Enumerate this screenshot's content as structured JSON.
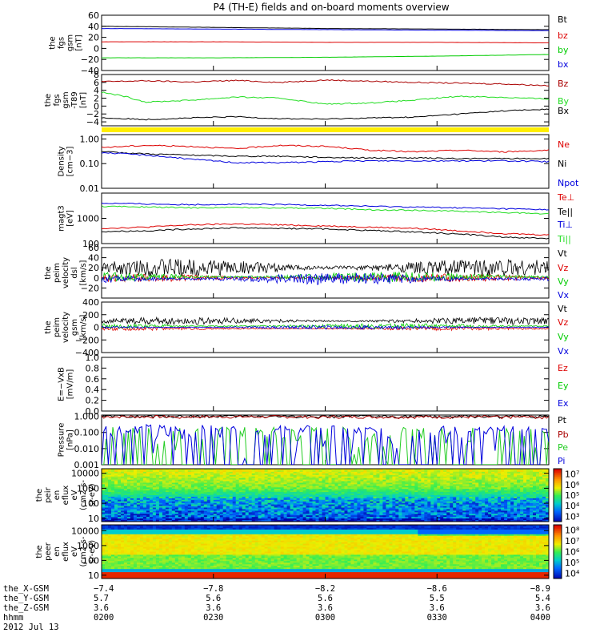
{
  "title": "P4 (TH-E) fields and on-board moments overview",
  "chart_data": [
    {
      "id": "fgs",
      "type": "line",
      "ylabel": [
        "the",
        "fgs",
        "gsm",
        "[nT]"
      ],
      "ylim": [
        -40,
        60
      ],
      "yticks": [
        "60",
        "40",
        "20",
        "0",
        "−20",
        "−40"
      ],
      "ytick_values": [
        60,
        40,
        20,
        0,
        -20,
        -40
      ],
      "series": [
        {
          "name": "Bt",
          "color": "#000000",
          "x": [
            0,
            0.25,
            0.5,
            0.75,
            1
          ],
          "y": [
            40,
            38,
            36,
            35,
            34
          ]
        },
        {
          "name": "bz",
          "color": "#dd0000",
          "x": [
            0,
            0.25,
            0.5,
            0.75,
            1
          ],
          "y": [
            12,
            12,
            11,
            11,
            10
          ]
        },
        {
          "name": "by",
          "color": "#00cc00",
          "x": [
            0,
            0.25,
            0.5,
            0.75,
            1
          ],
          "y": [
            -17,
            -17,
            -16,
            -14,
            -11
          ]
        },
        {
          "name": "bx",
          "color": "#0000dd",
          "x": [
            0,
            0.25,
            0.5,
            0.75,
            1
          ],
          "y": [
            36,
            35,
            34,
            33,
            32
          ]
        }
      ]
    },
    {
      "id": "fgs-dsl",
      "type": "line",
      "ylabel": [
        "the",
        "fgs",
        "gsm",
        "-T89",
        "[nT]"
      ],
      "ylim": [
        -5,
        8
      ],
      "yticks": [
        "8",
        "6",
        "4",
        "2",
        "0",
        "−2",
        "−4"
      ],
      "ytick_values": [
        8,
        6,
        4,
        2,
        0,
        -2,
        -4
      ],
      "series": [
        {
          "name": "Bz",
          "color": "#aa0000",
          "x": [
            0,
            0.1,
            0.2,
            0.3,
            0.4,
            0.5,
            0.6,
            0.7,
            0.8,
            0.9,
            1
          ],
          "y": [
            6.2,
            6.4,
            6.1,
            6.5,
            6.0,
            6.6,
            6.3,
            6.0,
            5.8,
            5.6,
            5.2
          ]
        },
        {
          "name": "By",
          "color": "#22dd22",
          "x": [
            0,
            0.05,
            0.1,
            0.2,
            0.3,
            0.4,
            0.5,
            0.6,
            0.7,
            0.8,
            0.9,
            1
          ],
          "y": [
            3.5,
            2.5,
            1.0,
            1.5,
            2.3,
            2.0,
            0.5,
            0.8,
            1.5,
            2.5,
            2.2,
            1.8
          ]
        },
        {
          "name": "Bx",
          "color": "#000000",
          "x": [
            0,
            0.1,
            0.2,
            0.3,
            0.4,
            0.5,
            0.6,
            0.7,
            0.8,
            0.9,
            1
          ],
          "y": [
            -3.0,
            -3.4,
            -3.0,
            -2.7,
            -3.2,
            -3.3,
            -3.0,
            -2.8,
            -2.0,
            -1.2,
            -0.8
          ]
        }
      ]
    },
    {
      "id": "density",
      "type": "line",
      "scale": "log",
      "ylabel": [
        "Density",
        "[cm−3]"
      ],
      "ylim": [
        0.01,
        1.5
      ],
      "yticks": [
        "1.00",
        "0.10",
        "0.01"
      ],
      "ytick_values": [
        1,
        0.1,
        0.01
      ],
      "series": [
        {
          "name": "Ne",
          "color": "#dd0000",
          "x": [
            0,
            0.1,
            0.2,
            0.3,
            0.4,
            0.5,
            0.6,
            0.7,
            0.8,
            0.9,
            1
          ],
          "y": [
            0.45,
            0.55,
            0.5,
            0.4,
            0.55,
            0.5,
            0.35,
            0.3,
            0.35,
            0.3,
            0.35
          ]
        },
        {
          "name": "Ni",
          "color": "#000000",
          "x": [
            0,
            0.1,
            0.2,
            0.3,
            0.4,
            0.5,
            0.6,
            0.7,
            0.8,
            0.9,
            1
          ],
          "y": [
            0.3,
            0.25,
            0.22,
            0.2,
            0.2,
            0.18,
            0.17,
            0.17,
            0.16,
            0.16,
            0.16
          ]
        },
        {
          "name": "Npot",
          "color": "#0000dd",
          "x": [
            0,
            0.1,
            0.2,
            0.3,
            0.4,
            0.5,
            0.6,
            0.7,
            0.8,
            0.9,
            1
          ],
          "y": [
            0.28,
            0.22,
            0.15,
            0.11,
            0.11,
            0.12,
            0.13,
            0.13,
            0.13,
            0.13,
            0.12
          ]
        }
      ]
    },
    {
      "id": "temperature",
      "type": "line",
      "scale": "log",
      "ylabel": [
        "magt3",
        "[eV]"
      ],
      "ylim": [
        100,
        10000
      ],
      "yticks": [
        "1000",
        "100"
      ],
      "ytick_values": [
        1000,
        100
      ],
      "series": [
        {
          "name": "Te⊥",
          "color": "#dd0000",
          "x": [
            0,
            0.1,
            0.2,
            0.3,
            0.4,
            0.5,
            0.6,
            0.7,
            0.8,
            0.9,
            1
          ],
          "y": [
            400,
            450,
            550,
            600,
            550,
            500,
            450,
            400,
            320,
            250,
            220
          ]
        },
        {
          "name": "Te||",
          "color": "#000000",
          "x": [
            0,
            0.1,
            0.2,
            0.3,
            0.4,
            0.5,
            0.6,
            0.7,
            0.8,
            0.9,
            1
          ],
          "y": [
            300,
            320,
            380,
            420,
            400,
            380,
            330,
            290,
            240,
            180,
            160
          ]
        },
        {
          "name": "Ti⊥",
          "color": "#0000dd",
          "x": [
            0,
            0.1,
            0.2,
            0.3,
            0.4,
            0.5,
            0.6,
            0.7,
            0.8,
            0.9,
            1
          ],
          "y": [
            4000,
            3700,
            3500,
            3600,
            3500,
            3300,
            3000,
            2800,
            2600,
            2400,
            2200
          ]
        },
        {
          "name": "Ti||",
          "color": "#22dd22",
          "x": [
            0,
            0.1,
            0.2,
            0.3,
            0.4,
            0.5,
            0.6,
            0.7,
            0.8,
            0.9,
            1
          ],
          "y": [
            3000,
            2800,
            2600,
            2700,
            2600,
            2500,
            2200,
            2100,
            1900,
            1700,
            1500
          ]
        }
      ]
    },
    {
      "id": "velocity-peim-dsl",
      "type": "line",
      "ylabel": [
        "the",
        "peim",
        "velocity",
        "dsl",
        "[km/s]"
      ],
      "ylim": [
        -40,
        60
      ],
      "yticks": [
        "60",
        "40",
        "20",
        "0",
        "−20"
      ],
      "ytick_values": [
        60,
        40,
        20,
        0,
        -20
      ],
      "series": [
        {
          "name": "Vt",
          "color": "#000000",
          "baseline": 20,
          "amp": 18
        },
        {
          "name": "Vz",
          "color": "#dd0000",
          "baseline": 0,
          "amp": 8
        },
        {
          "name": "Vy",
          "color": "#00cc00",
          "baseline": 2,
          "amp": 10
        },
        {
          "name": "Vx",
          "color": "#0000dd",
          "baseline": -2,
          "amp": 12
        }
      ]
    },
    {
      "id": "velocity-peim-gsm",
      "type": "line",
      "ylabel": [
        "the",
        "peim",
        "velocity",
        "gsm",
        "[km/s]"
      ],
      "ylim": [
        -400,
        400
      ],
      "yticks": [
        "400",
        "200",
        "0",
        "−200",
        "−400"
      ],
      "ytick_values": [
        400,
        200,
        0,
        -200,
        -400
      ],
      "series": [
        {
          "name": "Vt",
          "color": "#000000",
          "baseline": 100,
          "amp": 60
        },
        {
          "name": "Vz",
          "color": "#dd0000",
          "baseline": -20,
          "amp": 30
        },
        {
          "name": "Vy",
          "color": "#00cc00",
          "baseline": 20,
          "amp": 40
        },
        {
          "name": "Vx",
          "color": "#0000dd",
          "baseline": 0,
          "amp": 30
        }
      ]
    },
    {
      "id": "efield",
      "type": "line",
      "ylabel": [
        "E=−VxB",
        "[mV/m]"
      ],
      "ylim": [
        0,
        1
      ],
      "yticks": [
        "1.0",
        "0.8",
        "0.6",
        "0.4",
        "0.2",
        "0.0"
      ],
      "ytick_values": [
        1,
        0.8,
        0.6,
        0.4,
        0.2,
        0
      ],
      "series": [
        {
          "name": "Ez",
          "color": "#dd0000"
        },
        {
          "name": "Ey",
          "color": "#00cc00"
        },
        {
          "name": "Ex",
          "color": "#0000dd"
        }
      ]
    },
    {
      "id": "pressure",
      "type": "line",
      "scale": "log",
      "ylabel": [
        "Pressure",
        "[nPa]"
      ],
      "ylim": [
        0.001,
        1.2
      ],
      "yticks": [
        "1.000",
        "0.100",
        "0.010",
        "0.001"
      ],
      "ytick_values": [
        1,
        0.1,
        0.01,
        0.001
      ],
      "series": [
        {
          "name": "Pt",
          "color": "#000000",
          "x": [
            0,
            0.5,
            1
          ],
          "y": [
            1.0,
            0.98,
            0.95
          ]
        },
        {
          "name": "Pb",
          "color": "#aa0000",
          "x": [
            0,
            0.5,
            1
          ],
          "y": [
            0.95,
            0.93,
            0.9
          ]
        },
        {
          "name": "Pe",
          "color": "#22cc22",
          "x": [
            0,
            0.1,
            0.2,
            0.3,
            0.4,
            0.5,
            0.6,
            0.7,
            0.8,
            0.9,
            1
          ],
          "y": [
            0.022,
            0.02,
            0.018,
            0.017,
            0.015,
            0.014,
            0.012,
            0.012,
            0.01,
            0.008,
            0.006
          ]
        },
        {
          "name": "Pi",
          "color": "#0000dd",
          "x": [
            0,
            0.1,
            0.2,
            0.3,
            0.4,
            0.5,
            0.6,
            0.7,
            0.8,
            0.9,
            1
          ],
          "y": [
            0.13,
            0.11,
            0.09,
            0.08,
            0.07,
            0.07,
            0.06,
            0.06,
            0.05,
            0.04,
            0.03
          ]
        }
      ]
    },
    {
      "id": "peir-spectrogram",
      "type": "heatmap",
      "ylabel": [
        "the",
        "peir",
        "en",
        "eflux",
        "eV",
        "(cm2-s-",
        "sr-eV)"
      ],
      "scale": "log",
      "ylim": [
        6,
        20000
      ],
      "yticks": [
        "10000",
        "1000",
        "100",
        "10"
      ],
      "ytick_values": [
        10000,
        1000,
        100,
        10
      ],
      "colorbar": {
        "labels": [
          "10⁷",
          "10⁶",
          "10⁵",
          "10⁴",
          "10³"
        ],
        "label_values": [
          7,
          6,
          5,
          4,
          3
        ],
        "range": [
          2.5,
          7.5
        ]
      }
    },
    {
      "id": "peer-spectrogram",
      "type": "heatmap",
      "ylabel": [
        "the",
        "peer",
        "en",
        "eflux",
        "eV",
        "(cm2-s-",
        "sr-eV)"
      ],
      "scale": "log",
      "ylim": [
        6,
        25000
      ],
      "yticks": [
        "10000",
        "1000",
        "100",
        "10"
      ],
      "ytick_values": [
        10000,
        1000,
        100,
        10
      ],
      "colorbar": {
        "labels": [
          "10⁸",
          "10⁷",
          "10⁶",
          "10⁵",
          "10⁴"
        ],
        "label_values": [
          8,
          7,
          6,
          5,
          4
        ],
        "range": [
          3.5,
          8.5
        ]
      }
    }
  ],
  "x_axis": {
    "rows": [
      {
        "label": "the_X-GSM",
        "values": [
          "−7.4",
          "−7.8",
          "−8.2",
          "−8.6",
          "−8.9"
        ]
      },
      {
        "label": "the_Y-GSM",
        "values": [
          "5.7",
          "5.6",
          "5.6",
          "5.5",
          "5.4"
        ]
      },
      {
        "label": "the_Z-GSM",
        "values": [
          "3.6",
          "3.6",
          "3.6",
          "3.6",
          "3.6"
        ]
      },
      {
        "label": "hhmm",
        "values": [
          "0200",
          "0230",
          "0300",
          "0330",
          "0400"
        ]
      }
    ],
    "date": "2012 Jul 13"
  }
}
